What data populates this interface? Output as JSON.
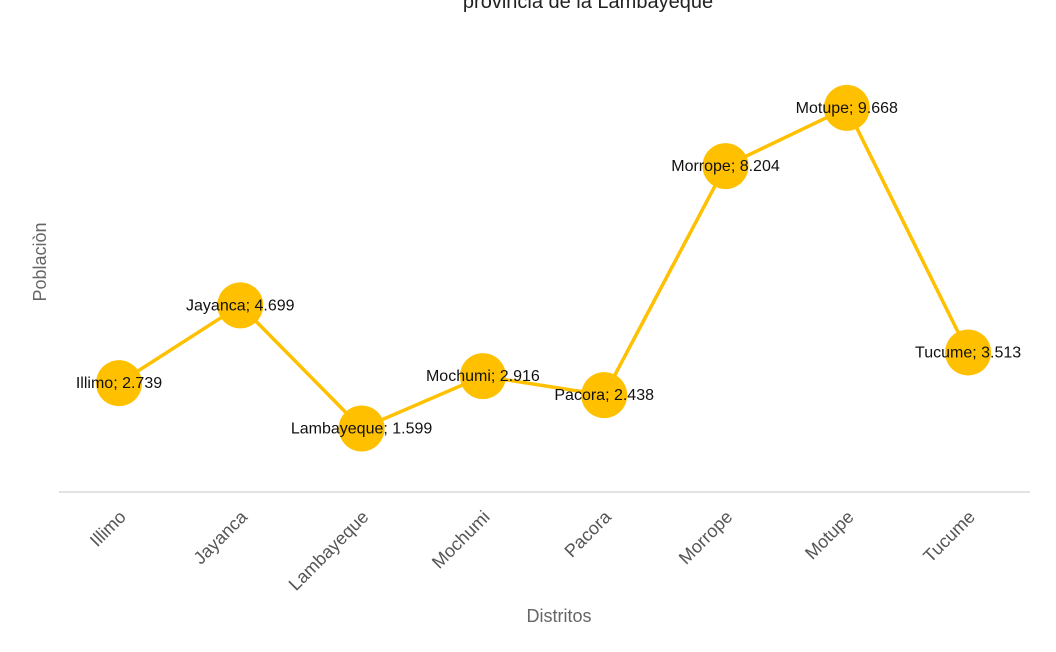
{
  "chart_data": {
    "type": "line",
    "title": "provincia de la Lambayeque",
    "xlabel": "Distritos",
    "ylabel": "Poblaciòn",
    "categories": [
      "Illimo",
      "Jayanca",
      "Lambayeque",
      "Mochumi",
      "Pacora",
      "Morrope",
      "Motupe",
      "Tucume"
    ],
    "series": [
      {
        "values": [
          2.739,
          4.699,
          1.599,
          2.916,
          2.438,
          8.204,
          9.668,
          3.513
        ],
        "labels": [
          "Illimo; 2.739",
          "Jayanca; 4.699",
          "Lambayeque; 1.599",
          "Mochumi; 2.916",
          "Pacora; 2.438",
          "Morrope; 8.204",
          "Motupe; 9.668",
          "Tucume; 3.513"
        ]
      }
    ],
    "ylim": [
      0,
      11
    ],
    "grid": false,
    "legend": "none",
    "colors": {
      "line": "#FFC000",
      "marker": "#FFC000",
      "axis": "#D9D9D9"
    }
  }
}
